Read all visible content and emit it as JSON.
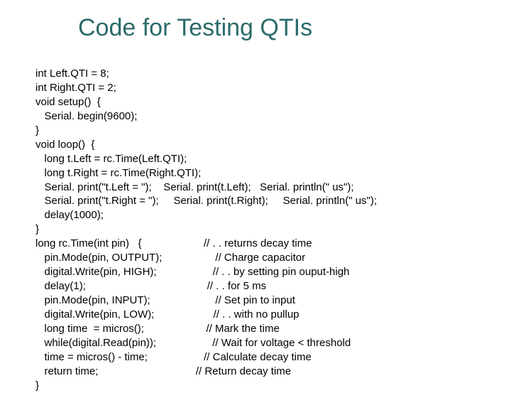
{
  "title": {
    "text": "Code for Testing QTIs",
    "color": "#2b6b6b",
    "fontsize": 34
  },
  "code": {
    "color": "#000000",
    "fontsize": 15,
    "lines": [
      "int Left.QTI = 8;",
      "int Right.QTI = 2;",
      "void setup()  {",
      "   Serial. begin(9600);",
      "}",
      "void loop()  {",
      "   long t.Left = rc.Time(Left.QTI);",
      "   long t.Right = rc.Time(Right.QTI);",
      "   Serial. print(\"t.Left = \");    Serial. print(t.Left);   Serial. println(\" us\");",
      "   Serial. print(\"t.Right = \");     Serial. print(t.Right);     Serial. println(\" us\");",
      "   delay(1000);",
      "}",
      "long rc.Time(int pin)   {                     // . . returns decay time",
      "   pin.Mode(pin, OUTPUT);                  // Charge capacitor",
      "   digital.Write(pin, HIGH);                   // . . by setting pin ouput-high",
      "   delay(1);                                         // . . for 5 ms",
      "   pin.Mode(pin, INPUT);                      // Set pin to input",
      "   digital.Write(pin, LOW);                    // . . with no pullup",
      "   long time  = micros();                     // Mark the time",
      "   while(digital.Read(pin));                   // Wait for voltage < threshold",
      "   time = micros() - time;                   // Calculate decay time",
      "   return time;                                 // Return decay time",
      "}"
    ]
  },
  "styling": {
    "background_color": "#ffffff",
    "slide_width": 720,
    "slide_height": 540
  }
}
